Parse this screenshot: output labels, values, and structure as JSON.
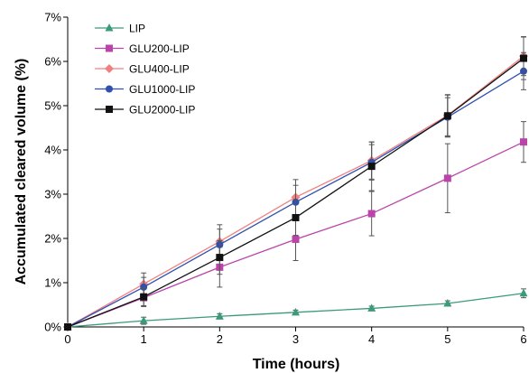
{
  "chart_data": {
    "type": "line",
    "title": "",
    "xlabel": "Time (hours)",
    "ylabel": "Accumulated cleared volume (%)",
    "x": [
      0,
      1,
      2,
      3,
      4,
      5,
      6
    ],
    "xlim": [
      0,
      6
    ],
    "ylim": [
      0,
      7
    ],
    "x_ticks": [
      "0",
      "1",
      "2",
      "3",
      "4",
      "5",
      "6"
    ],
    "y_ticks": [
      "0%",
      "1%",
      "2%",
      "3%",
      "4%",
      "5%",
      "6%",
      "7%"
    ],
    "grid": false,
    "legend_position": "top-left",
    "series": [
      {
        "name": "LIP",
        "color": "#3a9a7a",
        "marker": "triangle",
        "values": [
          0,
          0.14,
          0.24,
          0.33,
          0.42,
          0.53,
          0.76
        ],
        "errors": [
          0,
          0.08,
          0.06,
          0.05,
          0.05,
          0.06,
          0.1
        ]
      },
      {
        "name": "GLU200-LIP",
        "color": "#bb44aa",
        "marker": "square",
        "values": [
          0,
          0.66,
          1.35,
          1.98,
          2.56,
          3.36,
          4.18
        ],
        "errors": [
          0,
          0.2,
          0.45,
          0.48,
          0.5,
          0.78,
          0.46
        ]
      },
      {
        "name": "GLU400-LIP",
        "color": "#f08080",
        "marker": "diamond",
        "values": [
          0,
          0.97,
          1.93,
          2.93,
          3.76,
          4.78,
          6.12
        ],
        "errors": [
          0,
          0.25,
          0.38,
          0.4,
          0.42,
          0.46,
          0.44
        ]
      },
      {
        "name": "GLU1000-LIP",
        "color": "#3050b0",
        "marker": "circle",
        "values": [
          0,
          0.9,
          1.86,
          2.82,
          3.72,
          4.74,
          5.78
        ],
        "errors": [
          0,
          0.22,
          0.35,
          0.38,
          0.4,
          0.44,
          0.42
        ]
      },
      {
        "name": "GLU2000-LIP",
        "color": "#111111",
        "marker": "square",
        "values": [
          0,
          0.68,
          1.57,
          2.47,
          3.63,
          4.77,
          6.07
        ],
        "errors": [
          0,
          0.2,
          0.38,
          0.4,
          0.55,
          0.48,
          0.48
        ]
      }
    ]
  }
}
